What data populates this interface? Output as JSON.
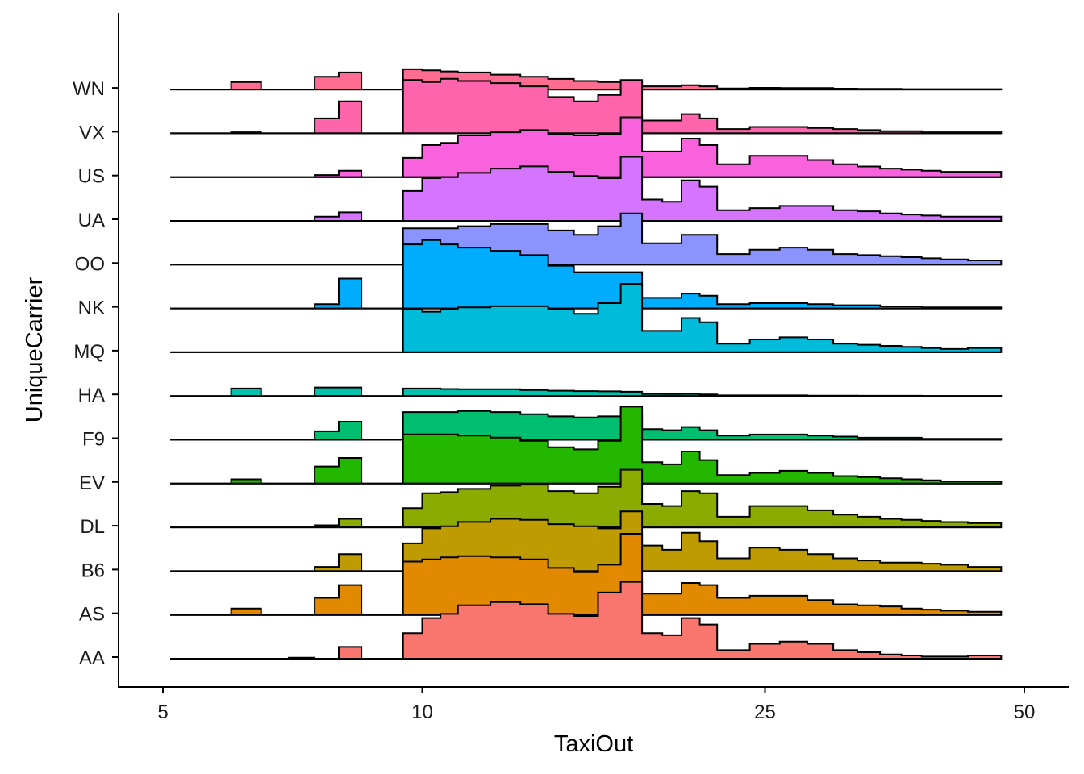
{
  "chart_data": {
    "type": "ridgeline-histogram",
    "title": "",
    "xlabel": "TaxiOut",
    "ylabel": "UniqueCarrier",
    "x_scale": "log",
    "xlim": [
      5,
      52
    ],
    "x_ticks": [
      5,
      10,
      25,
      50
    ],
    "bin_edges": [
      5.1,
      6,
      6.5,
      7,
      7.5,
      8,
      8.5,
      9,
      9.5,
      10,
      10.5,
      11,
      12,
      13,
      14,
      15,
      16,
      17,
      18,
      19,
      20,
      21,
      22,
      24,
      26,
      28,
      30,
      32,
      34,
      36,
      38,
      40,
      43,
      47
    ],
    "series": [
      {
        "name": "AA",
        "color": "#F8766D",
        "values": [
          0,
          0,
          0,
          0.5,
          0,
          5.5,
          0,
          0,
          12,
          19,
          21,
          25,
          26.5,
          25.5,
          21,
          20,
          31,
          36,
          12,
          11,
          19,
          16,
          4,
          7,
          8,
          7,
          4,
          3,
          2,
          1.5,
          1,
          1,
          1.5
        ]
      },
      {
        "name": "AS",
        "color": "#E18A00",
        "values": [
          0,
          3,
          0,
          0,
          8,
          14,
          0,
          0,
          25,
          26,
          27,
          27.5,
          27,
          26,
          22,
          20,
          23.5,
          38,
          10,
          10,
          15,
          14,
          8,
          9,
          9,
          7,
          5,
          4.5,
          4,
          3,
          2.5,
          2,
          1.5
        ]
      },
      {
        "name": "B6",
        "color": "#BE9C00",
        "values": [
          0,
          0,
          0,
          0,
          2,
          8,
          0,
          0,
          13,
          20,
          21,
          23,
          24.5,
          24,
          22,
          21,
          20,
          28,
          12,
          10,
          18,
          14,
          6,
          11,
          10,
          8,
          6,
          5,
          4,
          4,
          3.5,
          3,
          2
        ]
      },
      {
        "name": "DL",
        "color": "#8CAB00",
        "values": [
          0,
          0,
          0,
          0,
          1,
          4,
          0,
          0,
          9,
          16,
          16.5,
          18,
          19.5,
          20,
          17,
          16,
          19,
          27,
          11,
          10,
          17,
          16,
          5,
          10,
          10,
          8,
          6,
          5,
          4,
          3.5,
          3,
          2.5,
          2
        ]
      },
      {
        "name": "EV",
        "color": "#24B700",
        "values": [
          0,
          2,
          0,
          0,
          8,
          12,
          0,
          0,
          23,
          23,
          23,
          22.5,
          21.5,
          20,
          17,
          16,
          20,
          36,
          10,
          9,
          15,
          11,
          4,
          5,
          6,
          5,
          3.5,
          3,
          2.5,
          2,
          1.5,
          1,
          1
        ]
      },
      {
        "name": "F9",
        "color": "#00BE70",
        "values": [
          0,
          0,
          0,
          0,
          4,
          8.5,
          0,
          0,
          13,
          13,
          13,
          13.5,
          13,
          12,
          11,
          10.5,
          11,
          12,
          5,
          4.5,
          6,
          4.5,
          2,
          2.5,
          2.5,
          2,
          1.5,
          1,
          1,
          1,
          0.5,
          0.5,
          0.5
        ]
      },
      {
        "name": "HA",
        "color": "#00C1AB",
        "values": [
          0,
          3.5,
          0,
          0,
          4,
          4,
          0,
          0,
          3.5,
          3.5,
          3.3,
          3.2,
          3.2,
          2.8,
          2.5,
          2.3,
          2.2,
          2,
          1,
          0.9,
          1,
          0.7,
          0.3,
          0.3,
          0.3,
          0.2,
          0.2,
          0.1,
          0.1,
          0.1,
          0.05,
          0.05,
          0.05
        ]
      },
      {
        "name": "MQ",
        "color": "#00BBDA",
        "values": [
          0,
          0,
          0,
          0,
          0,
          0,
          0,
          0,
          20,
          19,
          20,
          21,
          21.5,
          21.5,
          20,
          18,
          23,
          32,
          10,
          10,
          16,
          14,
          4,
          6,
          7,
          6,
          4,
          3.5,
          3,
          2.5,
          2,
          1.5,
          2
        ]
      },
      {
        "name": "NK",
        "color": "#00ACFC",
        "values": [
          0,
          0,
          0,
          0,
          2,
          14,
          0,
          0,
          30,
          32,
          30,
          28.5,
          27,
          25,
          20,
          17,
          17,
          17,
          5,
          5,
          7,
          6,
          2,
          2.5,
          2.5,
          2,
          1.5,
          1.5,
          1,
          1,
          0.5,
          0.5,
          0.5
        ]
      },
      {
        "name": "OO",
        "color": "#8B93FF",
        "values": [
          0,
          0,
          0,
          0,
          0,
          0,
          0,
          0,
          17,
          17,
          17,
          18,
          19,
          19,
          16,
          14,
          18,
          24,
          10,
          10,
          14,
          14,
          5,
          7,
          8,
          7,
          5,
          4.5,
          4,
          3.5,
          3,
          2.5,
          2
        ]
      },
      {
        "name": "UA",
        "color": "#D575FE",
        "values": [
          0,
          0,
          0,
          0,
          2,
          4,
          0,
          0,
          14,
          20,
          20.5,
          22.5,
          24.5,
          25.5,
          23,
          21,
          20,
          30,
          10,
          9,
          19,
          16,
          5,
          6,
          7,
          7,
          5,
          4.5,
          3.5,
          3,
          2.5,
          2,
          2
        ]
      },
      {
        "name": "US",
        "color": "#F962DD",
        "values": [
          0,
          0,
          0,
          0,
          1,
          3,
          0,
          0,
          9,
          15,
          16,
          19.5,
          21,
          22,
          20,
          19.5,
          20,
          28,
          12,
          12,
          18,
          15,
          6,
          10,
          10,
          8,
          6,
          5,
          4,
          3.5,
          3,
          2.5,
          2.5
        ]
      },
      {
        "name": "VX",
        "color": "#FF65AC",
        "values": [
          0,
          0.5,
          0,
          0,
          7,
          15,
          0,
          0,
          25,
          24,
          25.5,
          24.5,
          23.5,
          22,
          17,
          15,
          18,
          25,
          6,
          6,
          9,
          7,
          2,
          3,
          3,
          2.5,
          2,
          1.5,
          1,
          1,
          0.5,
          0.5,
          0.5
        ]
      },
      {
        "name": "WN",
        "color": "#FF6C91",
        "values": [
          0,
          3.5,
          0,
          0,
          6,
          8,
          0,
          0,
          9.5,
          9,
          8.5,
          8,
          7,
          6,
          5,
          4,
          3.5,
          3.5,
          1.5,
          1.5,
          2,
          1.5,
          0.5,
          0.8,
          0.7,
          0.7,
          0.4,
          0.3,
          0.3,
          0.2,
          0.2,
          0.2,
          0.2
        ]
      }
    ]
  }
}
